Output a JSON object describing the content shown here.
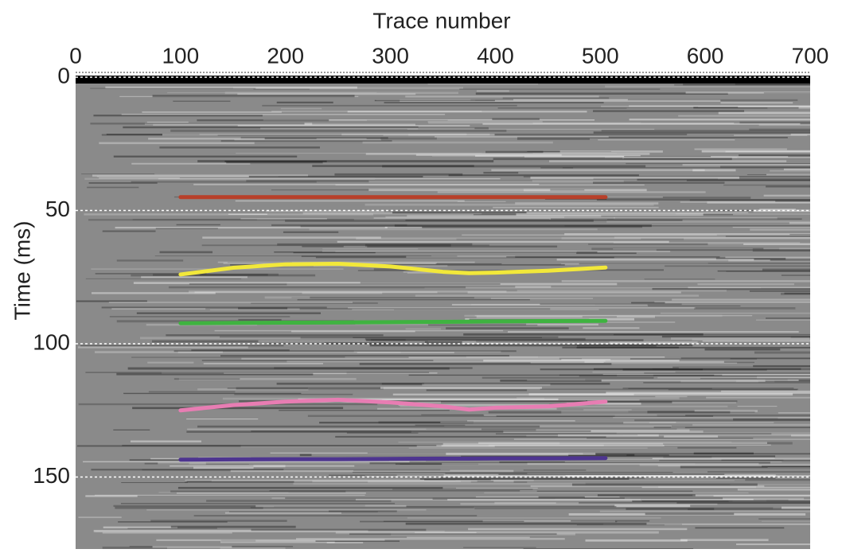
{
  "chart_data": {
    "type": "line",
    "x_label": "Trace number",
    "y_label": "Time (ms)",
    "x": [
      100,
      150,
      200,
      250,
      300,
      350,
      375,
      400,
      450,
      505
    ],
    "series": [
      {
        "color": "#b8402a",
        "values": [
          45,
          45,
          45,
          45,
          45,
          45,
          45,
          45,
          45,
          45
        ]
      },
      {
        "color": "#f2e83a",
        "values": [
          74,
          71.5,
          70.2,
          70,
          71,
          73,
          73.5,
          73.3,
          72.6,
          71.4
        ]
      },
      {
        "color": "#3fb340",
        "values": [
          92.3,
          92.2,
          92.1,
          92,
          91.9,
          91.8,
          91.7,
          91.6,
          91.5,
          91.4
        ]
      },
      {
        "color": "#e87db3",
        "values": [
          125,
          123,
          121.7,
          121,
          122,
          123.5,
          124.7,
          124,
          123.5,
          121.7
        ]
      },
      {
        "color": "#4e3590",
        "values": [
          143.5,
          143.4,
          143.3,
          143.3,
          143.2,
          143.1,
          143.1,
          143,
          143,
          142.9
        ]
      }
    ],
    "xlim": [
      0,
      700
    ],
    "xticks": [
      0,
      100,
      200,
      300,
      400,
      500,
      600,
      700
    ],
    "ylim": [
      0,
      177
    ],
    "yticks": [
      0,
      50,
      100,
      150
    ],
    "y_inverted": true,
    "grid": true
  }
}
